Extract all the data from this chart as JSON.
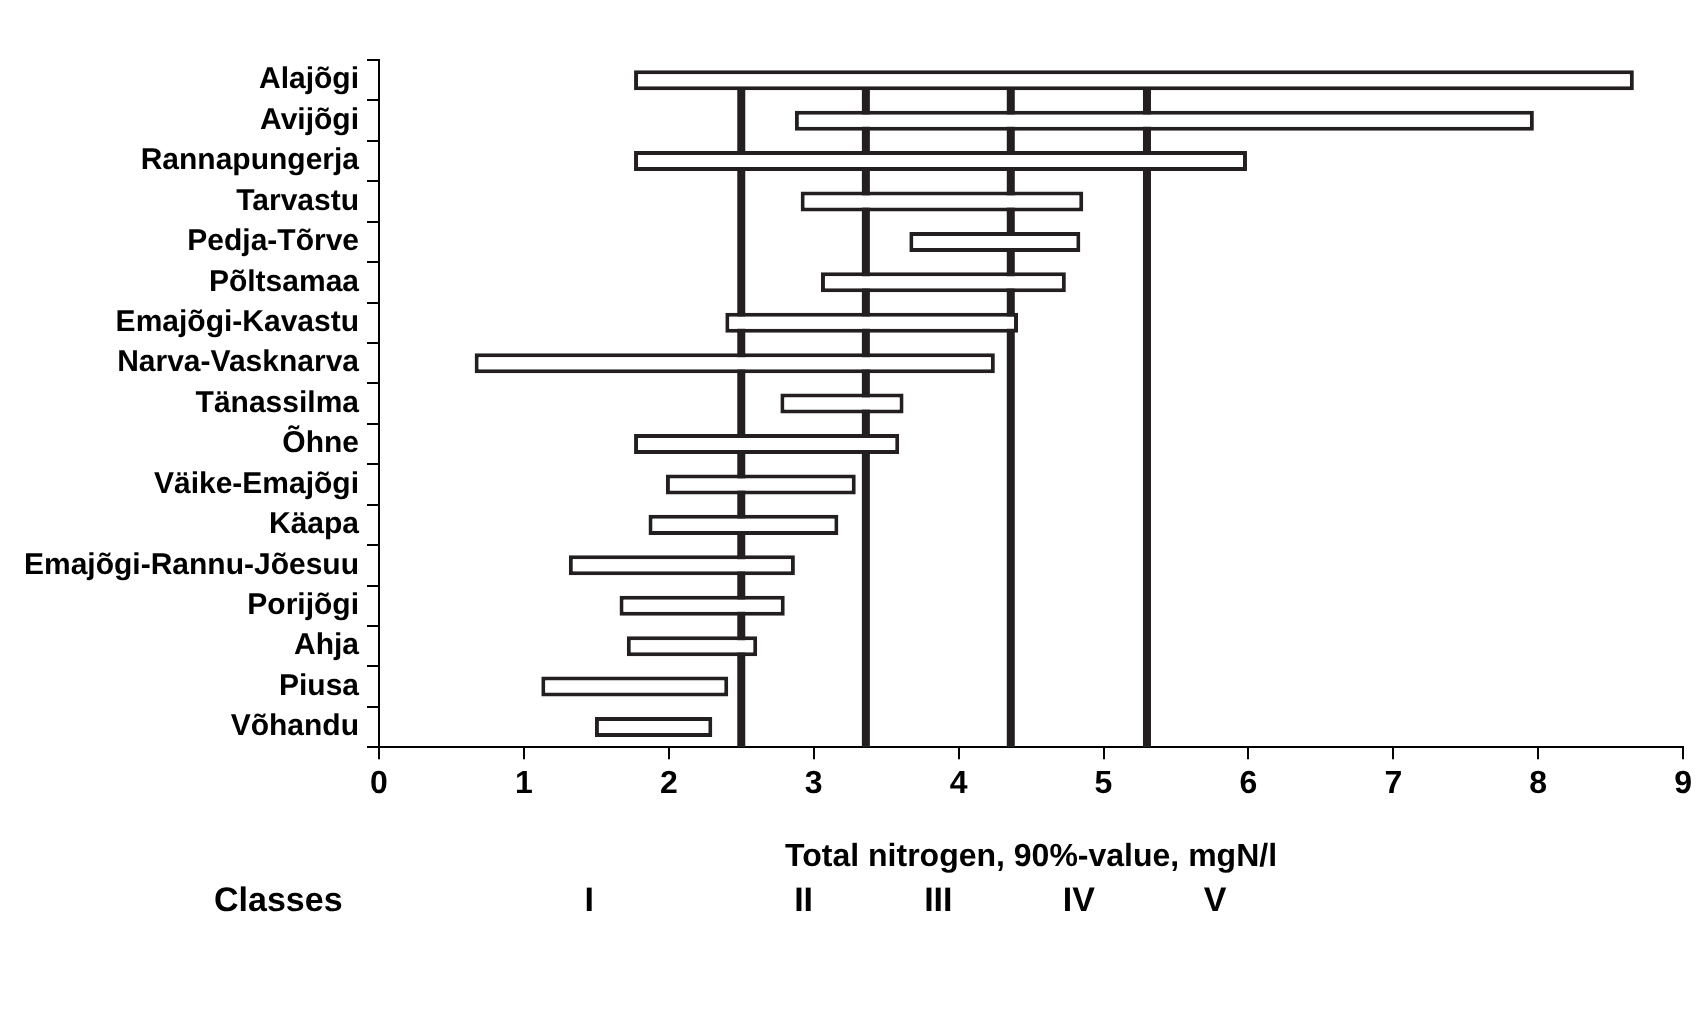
{
  "chart_data": {
    "type": "bar",
    "orientation": "horizontal",
    "xlabel": "Total nitrogen, 90%-value, mgN/l",
    "categories": [
      "Alajõgi",
      "Avijõgi",
      "Rannapungerja",
      "Tarvastu",
      "Pedja-Tõrve",
      "Põltsamaa",
      "Emajõgi-Kavastu",
      "Narva-Vasknarva",
      "Tänassilma",
      "Õhne",
      "Väike-Emajõgi",
      "Käapa",
      "Emajõgi-Rannu-Jõesuu",
      "Porijõgi",
      "Ahja",
      "Piusa",
      "Võhandu"
    ],
    "base": [
      1.76,
      2.87,
      1.76,
      2.91,
      3.66,
      3.05,
      2.39,
      0.66,
      2.77,
      1.76,
      1.98,
      1.86,
      1.31,
      1.66,
      1.71,
      1.12,
      1.49
    ],
    "values": [
      6.9,
      5.1,
      4.23,
      1.95,
      1.18,
      1.69,
      2.02,
      3.59,
      0.85,
      1.83,
      1.31,
      1.31,
      1.56,
      1.14,
      0.9,
      1.29,
      0.81
    ],
    "color": "#ffffff",
    "xlim": [
      0,
      9
    ],
    "xticks": [
      0,
      1,
      2,
      3,
      4,
      5,
      6,
      7,
      8,
      9
    ],
    "ref_lines": [
      {
        "axis": "x",
        "value": 2.5,
        "color": "#231f20"
      },
      {
        "axis": "x",
        "value": 3.36,
        "color": "#231f20"
      },
      {
        "axis": "x",
        "value": 4.36,
        "color": "#231f20"
      },
      {
        "axis": "x",
        "value": 5.3,
        "color": "#231f20"
      }
    ],
    "annotations": [
      "Classes",
      "I",
      "II",
      "III",
      "IV",
      "V"
    ],
    "grid": false,
    "legend": false
  }
}
